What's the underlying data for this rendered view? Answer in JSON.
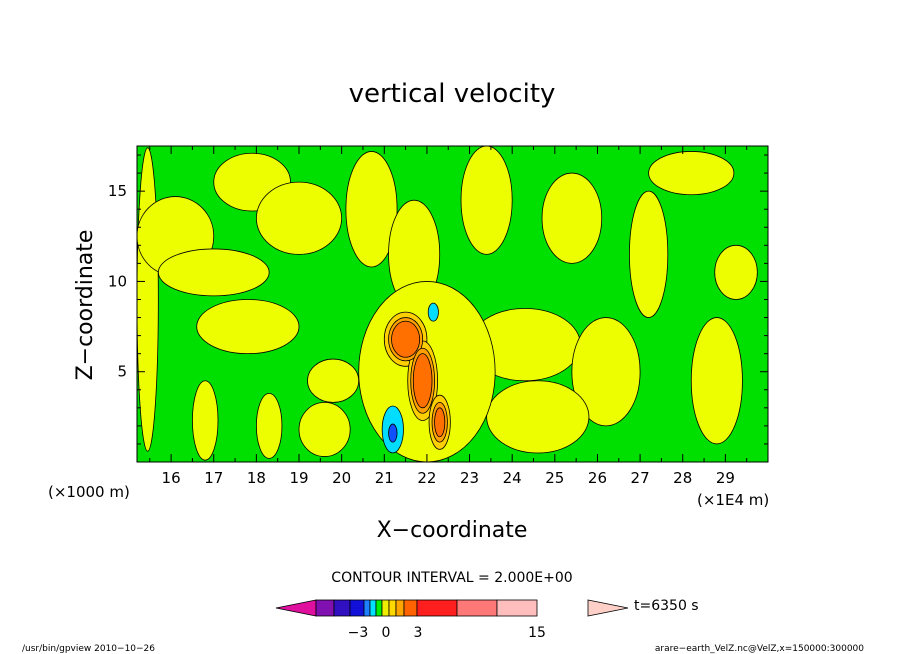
{
  "chart_data": {
    "type": "heatmap",
    "title": "vertical velocity",
    "xlabel": "X−coordinate",
    "ylabel": "Z−coordinate",
    "x_unit": "(×1E4 m)",
    "y_unit": "(×1000 m)",
    "xlim": [
      15.2,
      30.0
    ],
    "ylim": [
      0.0,
      17.5
    ],
    "x_ticks": [
      "16",
      "17",
      "18",
      "19",
      "20",
      "21",
      "22",
      "23",
      "24",
      "25",
      "26",
      "27",
      "28",
      "29"
    ],
    "y_ticks": [
      "5",
      "10",
      "15"
    ],
    "contour_interval": "CONTOUR INTERVAL = 2.000E+00",
    "time_label": "t=6350 s",
    "colorbar_labels": [
      "−3",
      "0",
      "3",
      "15"
    ],
    "colorbar_colors": [
      "#e0109e",
      "#8010b0",
      "#3010c0",
      "#1010d8",
      "#1f80ff",
      "#00e0ff",
      "#00ee00",
      "#eeee00",
      "#ffd800",
      "#ffa500",
      "#ff6400",
      "#ff1e1e",
      "#ff7878",
      "#ffbebe",
      "#ffd0c8"
    ],
    "field_colors": {
      "bg": "#00e000",
      "pos1": "#ecfe00",
      "pos2": "#ffd000",
      "pos3": "#ffa000",
      "pos4": "#ff7000",
      "neg1": "#00ddff",
      "neg2": "#1050ff",
      "neg3": "#1010c0"
    },
    "features": [
      {
        "sign": "+",
        "x": 15.45,
        "z": 9.0,
        "rx": 0.25,
        "rz": 8.4,
        "level": 1
      },
      {
        "sign": "+",
        "x": 16.1,
        "z": 12.5,
        "rx": 0.9,
        "rz": 2.2,
        "level": 1
      },
      {
        "sign": "+",
        "x": 17.9,
        "z": 15.5,
        "rx": 0.9,
        "rz": 1.6,
        "level": 1
      },
      {
        "sign": "+",
        "x": 17.0,
        "z": 10.5,
        "rx": 1.3,
        "rz": 1.3,
        "level": 1
      },
      {
        "sign": "+",
        "x": 19.0,
        "z": 13.5,
        "rx": 1.0,
        "rz": 2.0,
        "level": 1
      },
      {
        "sign": "+",
        "x": 20.7,
        "z": 14.0,
        "rx": 0.6,
        "rz": 3.2,
        "level": 1
      },
      {
        "sign": "+",
        "x": 21.7,
        "z": 11.5,
        "rx": 0.6,
        "rz": 3.0,
        "level": 1
      },
      {
        "sign": "+",
        "x": 23.4,
        "z": 14.5,
        "rx": 0.6,
        "rz": 3.0,
        "level": 1
      },
      {
        "sign": "+",
        "x": 25.4,
        "z": 13.5,
        "rx": 0.7,
        "rz": 2.5,
        "level": 1
      },
      {
        "sign": "+",
        "x": 27.2,
        "z": 11.5,
        "rx": 0.45,
        "rz": 3.5,
        "level": 1
      },
      {
        "sign": "+",
        "x": 28.2,
        "z": 16.0,
        "rx": 1.0,
        "rz": 1.2,
        "level": 1
      },
      {
        "sign": "+",
        "x": 29.25,
        "z": 10.5,
        "rx": 0.5,
        "rz": 1.5,
        "level": 1
      },
      {
        "sign": "+",
        "x": 17.8,
        "z": 7.5,
        "rx": 1.2,
        "rz": 1.5,
        "level": 1
      },
      {
        "sign": "+",
        "x": 19.8,
        "z": 4.5,
        "rx": 0.6,
        "rz": 1.2,
        "level": 1
      },
      {
        "sign": "+",
        "x": 16.8,
        "z": 2.3,
        "rx": 0.3,
        "rz": 2.2,
        "level": 1
      },
      {
        "sign": "+",
        "x": 18.3,
        "z": 2.0,
        "rx": 0.3,
        "rz": 1.8,
        "level": 1
      },
      {
        "sign": "+",
        "x": 19.6,
        "z": 1.8,
        "rx": 0.6,
        "rz": 1.5,
        "level": 1
      },
      {
        "sign": "+",
        "x": 24.3,
        "z": 6.5,
        "rx": 1.3,
        "rz": 2.0,
        "level": 1
      },
      {
        "sign": "+",
        "x": 26.2,
        "z": 5.0,
        "rx": 0.8,
        "rz": 3.0,
        "level": 1
      },
      {
        "sign": "+",
        "x": 24.6,
        "z": 2.5,
        "rx": 1.2,
        "rz": 2.0,
        "level": 1
      },
      {
        "sign": "+",
        "x": 28.8,
        "z": 4.5,
        "rx": 0.6,
        "rz": 3.5,
        "level": 1
      },
      {
        "sign": "+",
        "x": 22.0,
        "z": 5.0,
        "rx": 1.6,
        "rz": 5.0,
        "level": 1
      },
      {
        "sign": "+",
        "x": 21.5,
        "z": 6.8,
        "rx": 0.5,
        "rz": 1.5,
        "level": 2
      },
      {
        "sign": "+",
        "x": 21.5,
        "z": 6.8,
        "rx": 0.4,
        "rz": 1.2,
        "level": 3
      },
      {
        "sign": "+",
        "x": 21.5,
        "z": 6.8,
        "rx": 0.33,
        "rz": 1.0,
        "level": 4
      },
      {
        "sign": "+",
        "x": 21.9,
        "z": 4.5,
        "rx": 0.35,
        "rz": 2.2,
        "level": 2
      },
      {
        "sign": "+",
        "x": 21.9,
        "z": 4.5,
        "rx": 0.28,
        "rz": 1.8,
        "level": 3
      },
      {
        "sign": "+",
        "x": 21.9,
        "z": 4.5,
        "rx": 0.22,
        "rz": 1.5,
        "level": 4
      },
      {
        "sign": "+",
        "x": 22.3,
        "z": 2.2,
        "rx": 0.25,
        "rz": 1.5,
        "level": 2
      },
      {
        "sign": "+",
        "x": 22.3,
        "z": 2.2,
        "rx": 0.18,
        "rz": 1.1,
        "level": 3
      },
      {
        "sign": "+",
        "x": 22.3,
        "z": 2.2,
        "rx": 0.12,
        "rz": 0.8,
        "level": 4
      },
      {
        "sign": "-",
        "x": 21.2,
        "z": 1.8,
        "rx": 0.25,
        "rz": 1.3,
        "level": 1
      },
      {
        "sign": "-",
        "x": 21.2,
        "z": 1.6,
        "rx": 0.1,
        "rz": 0.5,
        "level": 2
      },
      {
        "sign": "-",
        "x": 22.15,
        "z": 8.3,
        "rx": 0.12,
        "rz": 0.5,
        "level": 1
      }
    ]
  },
  "footer": {
    "left": "/usr/bin/gpview   2010−10−26",
    "right": "arare−earth_VelZ.nc@VelZ,x=150000:300000"
  }
}
